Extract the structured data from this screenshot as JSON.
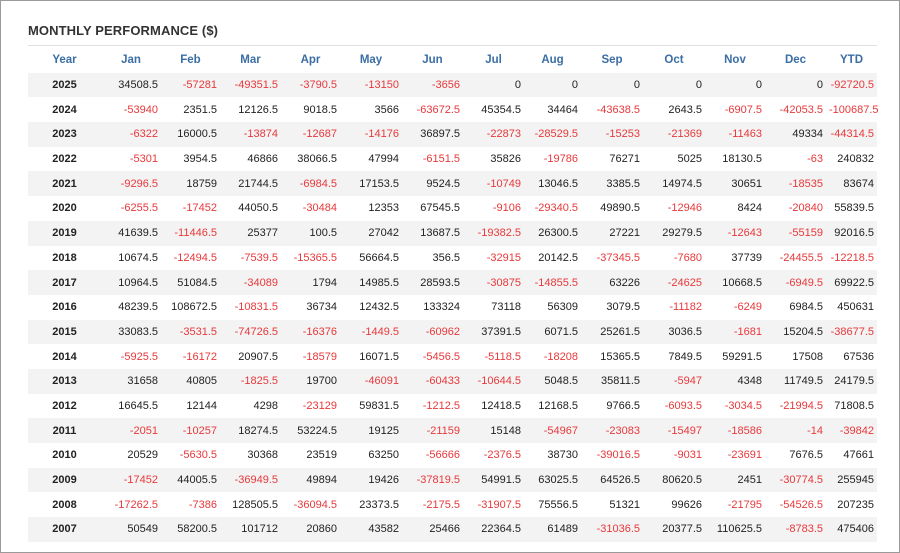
{
  "panel": {
    "title": "MONTHLY PERFORMANCE ($)"
  },
  "table": {
    "headers": [
      "Year",
      "Jan",
      "Feb",
      "Mar",
      "Apr",
      "May",
      "Jun",
      "Jul",
      "Aug",
      "Sep",
      "Oct",
      "Nov",
      "Dec",
      "YTD"
    ],
    "rows": [
      [
        "2025",
        "34508.5",
        "-57281",
        "-49351.5",
        "-3790.5",
        "-13150",
        "-3656",
        "0",
        "0",
        "0",
        "0",
        "0",
        "0",
        "-92720.5"
      ],
      [
        "2024",
        "-53940",
        "2351.5",
        "12126.5",
        "9018.5",
        "3566",
        "-63672.5",
        "45354.5",
        "34464",
        "-43638.5",
        "2643.5",
        "-6907.5",
        "-42053.5",
        "-100687.5"
      ],
      [
        "2023",
        "-6322",
        "16000.5",
        "-13874",
        "-12687",
        "-14176",
        "36897.5",
        "-22873",
        "-28529.5",
        "-15253",
        "-21369",
        "-11463",
        "49334",
        "-44314.5"
      ],
      [
        "2022",
        "-5301",
        "3954.5",
        "46866",
        "38066.5",
        "47994",
        "-6151.5",
        "35826",
        "-19786",
        "76271",
        "5025",
        "18130.5",
        "-63",
        "240832"
      ],
      [
        "2021",
        "-9296.5",
        "18759",
        "21744.5",
        "-6984.5",
        "17153.5",
        "9524.5",
        "-10749",
        "13046.5",
        "3385.5",
        "14974.5",
        "30651",
        "-18535",
        "83674"
      ],
      [
        "2020",
        "-6255.5",
        "-17452",
        "44050.5",
        "-30484",
        "12353",
        "67545.5",
        "-9106",
        "-29340.5",
        "49890.5",
        "-12946",
        "8424",
        "-20840",
        "55839.5"
      ],
      [
        "2019",
        "41639.5",
        "-11446.5",
        "25377",
        "100.5",
        "27042",
        "13687.5",
        "-19382.5",
        "26300.5",
        "27221",
        "29279.5",
        "-12643",
        "-55159",
        "92016.5"
      ],
      [
        "2018",
        "10674.5",
        "-12494.5",
        "-7539.5",
        "-15365.5",
        "56664.5",
        "356.5",
        "-32915",
        "20142.5",
        "-37345.5",
        "-7680",
        "37739",
        "-24455.5",
        "-12218.5"
      ],
      [
        "2017",
        "10964.5",
        "51084.5",
        "-34089",
        "1794",
        "14985.5",
        "28593.5",
        "-30875",
        "-14855.5",
        "63226",
        "-24625",
        "10668.5",
        "-6949.5",
        "69922.5"
      ],
      [
        "2016",
        "48239.5",
        "108672.5",
        "-10831.5",
        "36734",
        "12432.5",
        "133324",
        "73118",
        "56309",
        "3079.5",
        "-11182",
        "-6249",
        "6984.5",
        "450631"
      ],
      [
        "2015",
        "33083.5",
        "-3531.5",
        "-74726.5",
        "-16376",
        "-1449.5",
        "-60962",
        "37391.5",
        "6071.5",
        "25261.5",
        "3036.5",
        "-1681",
        "15204.5",
        "-38677.5"
      ],
      [
        "2014",
        "-5925.5",
        "-16172",
        "20907.5",
        "-18579",
        "16071.5",
        "-5456.5",
        "-5118.5",
        "-18208",
        "15365.5",
        "7849.5",
        "59291.5",
        "17508",
        "67536"
      ],
      [
        "2013",
        "31658",
        "40805",
        "-1825.5",
        "19700",
        "-46091",
        "-60433",
        "-10644.5",
        "5048.5",
        "35811.5",
        "-5947",
        "4348",
        "11749.5",
        "24179.5"
      ],
      [
        "2012",
        "16645.5",
        "12144",
        "4298",
        "-23129",
        "59831.5",
        "-1212.5",
        "12418.5",
        "12168.5",
        "9766.5",
        "-6093.5",
        "-3034.5",
        "-21994.5",
        "71808.5"
      ],
      [
        "2011",
        "-2051",
        "-10257",
        "18274.5",
        "53224.5",
        "19125",
        "-21159",
        "15148",
        "-54967",
        "-23083",
        "-15497",
        "-18586",
        "-14",
        "-39842"
      ],
      [
        "2010",
        "20529",
        "-5630.5",
        "30368",
        "23519",
        "63250",
        "-56666",
        "-2376.5",
        "38730",
        "-39016.5",
        "-9031",
        "-23691",
        "7676.5",
        "47661"
      ],
      [
        "2009",
        "-17452",
        "44005.5",
        "-36949.5",
        "49894",
        "19426",
        "-37819.5",
        "54991.5",
        "63025.5",
        "64526.5",
        "80620.5",
        "2451",
        "-30774.5",
        "255945"
      ],
      [
        "2008",
        "-17262.5",
        "-7386",
        "128505.5",
        "-36094.5",
        "23373.5",
        "-2175.5",
        "-31907.5",
        "75556.5",
        "51321",
        "99626",
        "-21795",
        "-54526.5",
        "207235"
      ],
      [
        "2007",
        "50549",
        "58200.5",
        "101712",
        "20860",
        "43582",
        "25466",
        "22364.5",
        "61489",
        "-31036.5",
        "20377.5",
        "110625.5",
        "-8783.5",
        "475406"
      ]
    ]
  },
  "colors": {
    "header_text": "#3a6ea5",
    "negative": "#e8383b",
    "positive": "#222222",
    "row_stripe": "#f3f3f3"
  }
}
